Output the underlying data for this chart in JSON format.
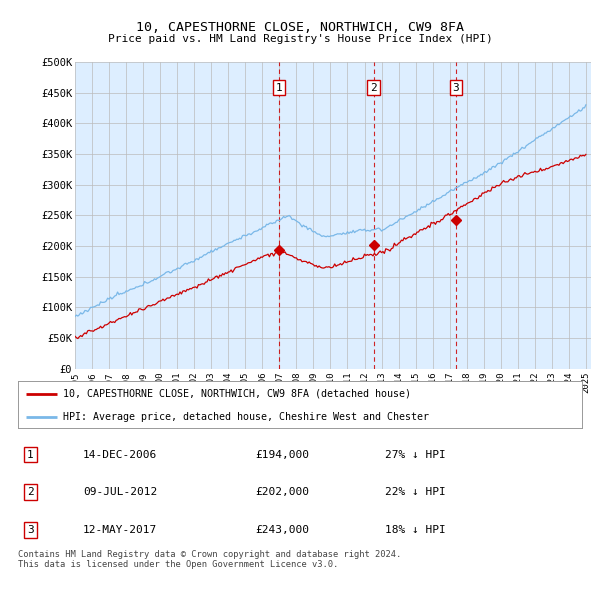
{
  "title1": "10, CAPESTHORNE CLOSE, NORTHWICH, CW9 8FA",
  "title2": "Price paid vs. HM Land Registry's House Price Index (HPI)",
  "ylabel_ticks": [
    "£0",
    "£50K",
    "£100K",
    "£150K",
    "£200K",
    "£250K",
    "£300K",
    "£350K",
    "£400K",
    "£450K",
    "£500K"
  ],
  "ytick_values": [
    0,
    50000,
    100000,
    150000,
    200000,
    250000,
    300000,
    350000,
    400000,
    450000,
    500000
  ],
  "ylim": [
    0,
    500000
  ],
  "hpi_color": "#7ab8e8",
  "price_color": "#cc0000",
  "vline_color": "#cc0000",
  "grid_color": "#bbbbbb",
  "bg_color": "#ddeeff",
  "transactions": [
    {
      "label": "1",
      "date": "14-DEC-2006",
      "price": 194000,
      "hpi_pct": "27% ↓ HPI",
      "x_year": 2006.96
    },
    {
      "label": "2",
      "date": "09-JUL-2012",
      "price": 202000,
      "hpi_pct": "22% ↓ HPI",
      "x_year": 2012.53
    },
    {
      "label": "3",
      "date": "12-MAY-2017",
      "price": 243000,
      "hpi_pct": "18% ↓ HPI",
      "x_year": 2017.36
    }
  ],
  "legend_line1": "10, CAPESTHORNE CLOSE, NORTHWICH, CW9 8FA (detached house)",
  "legend_line2": "HPI: Average price, detached house, Cheshire West and Chester",
  "footer": "Contains HM Land Registry data © Crown copyright and database right 2024.\nThis data is licensed under the Open Government Licence v3.0.",
  "xtick_years": [
    1995,
    1996,
    1997,
    1998,
    1999,
    2000,
    2001,
    2002,
    2003,
    2004,
    2005,
    2006,
    2007,
    2008,
    2009,
    2010,
    2011,
    2012,
    2013,
    2014,
    2015,
    2016,
    2017,
    2018,
    2019,
    2020,
    2021,
    2022,
    2023,
    2024,
    2025
  ]
}
